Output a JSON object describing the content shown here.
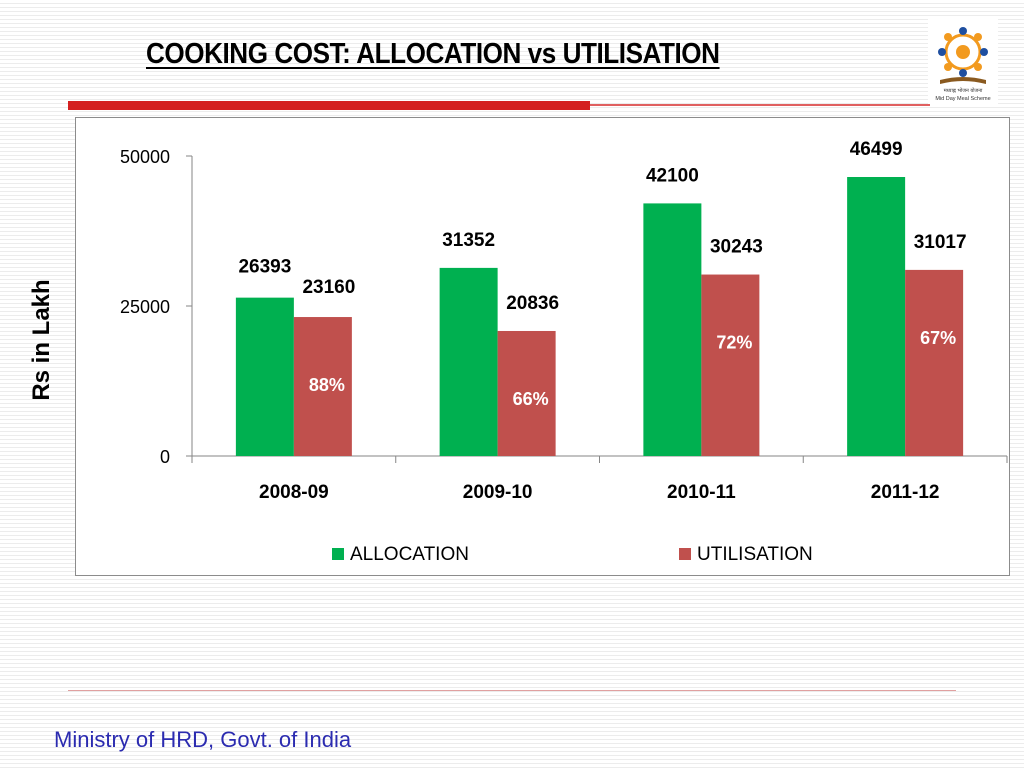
{
  "title": "COOKING COST: ALLOCATION vs UTILISATION",
  "logo": {
    "caption_hindi": "मध्याह्न भोजन योजना",
    "caption": "Mid Day Meal Scheme"
  },
  "footer": "Ministry of HRD, Govt. of India",
  "colors": {
    "allocation": "#00b050",
    "utilisation": "#c0504d",
    "title_bar": "#d42020",
    "footer_text": "#2b2bb0"
  },
  "chart_data": {
    "type": "bar",
    "categories": [
      "2008-09",
      "2009-10",
      "2010-11",
      "2011-12"
    ],
    "series": [
      {
        "name": "ALLOCATION",
        "values": [
          26393,
          31352,
          42100,
          46499
        ]
      },
      {
        "name": "UTILISATION",
        "values": [
          23160,
          20836,
          30243,
          31017
        ]
      }
    ],
    "utilisation_percent_labels": [
      "88%",
      "66%",
      "72%",
      "67%"
    ],
    "ylabel": "Rs in Lakh",
    "xlabel": "",
    "ylim": [
      0,
      50000
    ],
    "yticks": [
      "0",
      "25000",
      "50000"
    ],
    "legend_position": "bottom",
    "grid": false
  }
}
